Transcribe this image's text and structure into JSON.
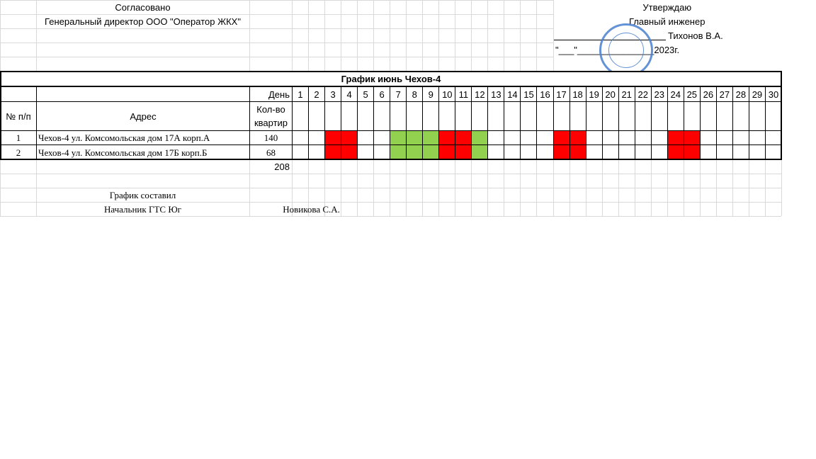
{
  "approval_left": {
    "title": "Согласовано",
    "position": "Генеральный директор ООО \"Оператор ЖКХ\""
  },
  "approval_right": {
    "title": "Утверждаю",
    "position": "Главный инженер",
    "name": "Тихонов В.А.",
    "date": "\"___\"_______________2023г."
  },
  "table": {
    "title": "График июнь Чехов-4",
    "header": {
      "number": "№ п/п",
      "address": "Адрес",
      "day": "День",
      "apartments": "Кол-во квартир"
    },
    "days": [
      1,
      2,
      3,
      4,
      5,
      6,
      7,
      8,
      9,
      10,
      11,
      12,
      13,
      14,
      15,
      16,
      17,
      18,
      19,
      20,
      21,
      22,
      23,
      24,
      25,
      26,
      27,
      28,
      29,
      30
    ],
    "rows": [
      {
        "number": 1,
        "address": "Чехов-4 ул. Комсомольская дом 17А корп.А",
        "apartments": 140,
        "red_days": [
          3,
          4,
          10,
          11,
          17,
          18,
          24,
          25
        ],
        "green_days": [
          7,
          8,
          9,
          12
        ]
      },
      {
        "number": 2,
        "address": "Чехов-4 ул. Комсомольская дом 17Б корп.Б",
        "apartments": 68,
        "red_days": [
          3,
          4,
          10,
          11,
          17,
          18,
          24,
          25
        ],
        "green_days": [
          7,
          8,
          9,
          12
        ]
      }
    ],
    "total": 208
  },
  "colors": {
    "red": "#ff0000",
    "green": "#92d050"
  },
  "footer": {
    "label": "График составил",
    "position": "Начальник ГТС Юг",
    "name": "Новикова С.А."
  }
}
